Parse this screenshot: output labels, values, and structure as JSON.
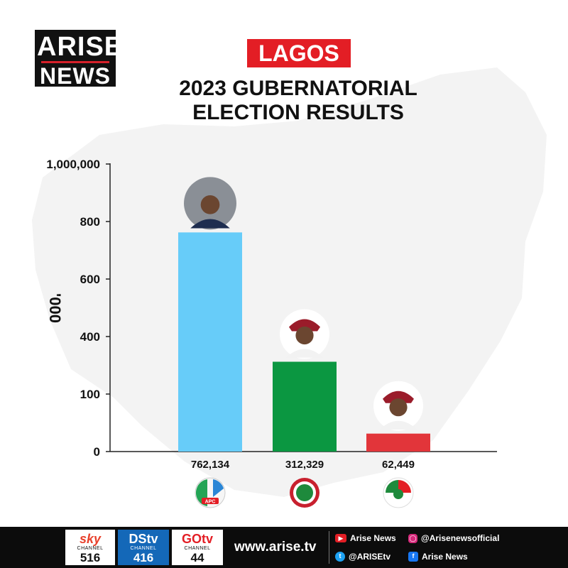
{
  "logo": {
    "line1": "ARISE",
    "line2": "NEWS"
  },
  "region": "LAGOS",
  "title": {
    "line1": "2023 GUBERNATORIAL",
    "line2": "ELECTION RESULTS"
  },
  "chart_data": {
    "type": "bar",
    "title": "2023 GUBERNATORIAL ELECTION RESULTS",
    "ylabel": "'000",
    "yticks": [
      "0",
      "100",
      "400",
      "600",
      "800",
      "1,000,000"
    ],
    "ylim": [
      0,
      1000000
    ],
    "categories": [
      "APC",
      "LP",
      "PDP"
    ],
    "values": [
      762134,
      312329,
      62449
    ],
    "value_labels": [
      "762,134",
      "312,329",
      "62,449"
    ],
    "bar_colors": [
      "#67ccf9",
      "#0b9741",
      "#e2353a"
    ],
    "party_labels": [
      "APC"
    ],
    "grid": false,
    "legend": "none"
  },
  "footer": {
    "channels": [
      {
        "brand": "sky",
        "label": "CHANNEL",
        "number": "516"
      },
      {
        "brand": "DStv",
        "label": "CHANNEL",
        "number": "416"
      },
      {
        "brand": "GOtv",
        "label": "CHANNEL",
        "number": "44"
      }
    ],
    "website": "www.arise.tv",
    "socials": [
      {
        "icon": "youtube-icon",
        "handle": "Arise News"
      },
      {
        "icon": "instagram-icon",
        "handle": "@Arisenewsofficial"
      },
      {
        "icon": "twitter-icon",
        "handle": "@ARISEtv"
      },
      {
        "icon": "facebook-icon",
        "handle": "Arise News"
      }
    ]
  }
}
